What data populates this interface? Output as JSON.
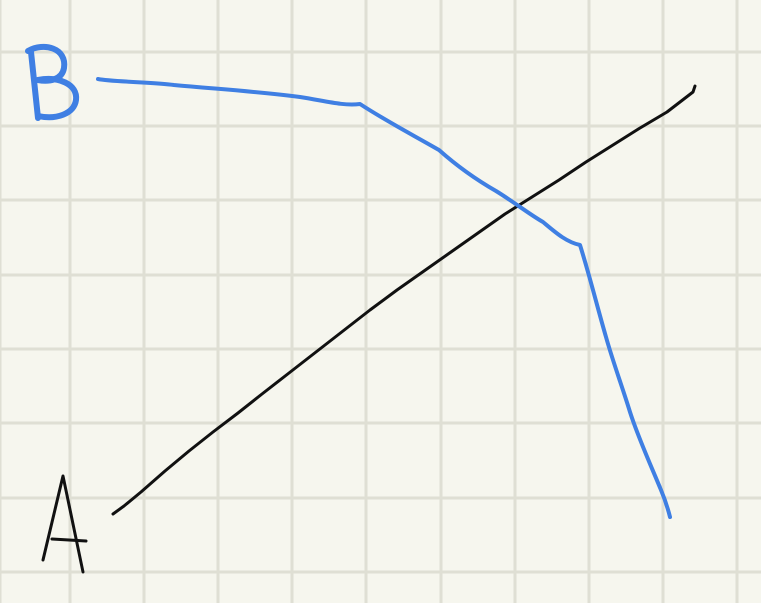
{
  "labels": {
    "a": "A",
    "b": "B"
  },
  "colors": {
    "background": "#f6f6ee",
    "grid": "#dfdfd4",
    "line_a": "#111111",
    "line_b": "#3f7fe3"
  },
  "lines": [
    {
      "name": "line-a",
      "color_key": "line_a",
      "label_key": "a"
    },
    {
      "name": "line-b",
      "color_key": "line_b",
      "label_key": "b"
    }
  ]
}
